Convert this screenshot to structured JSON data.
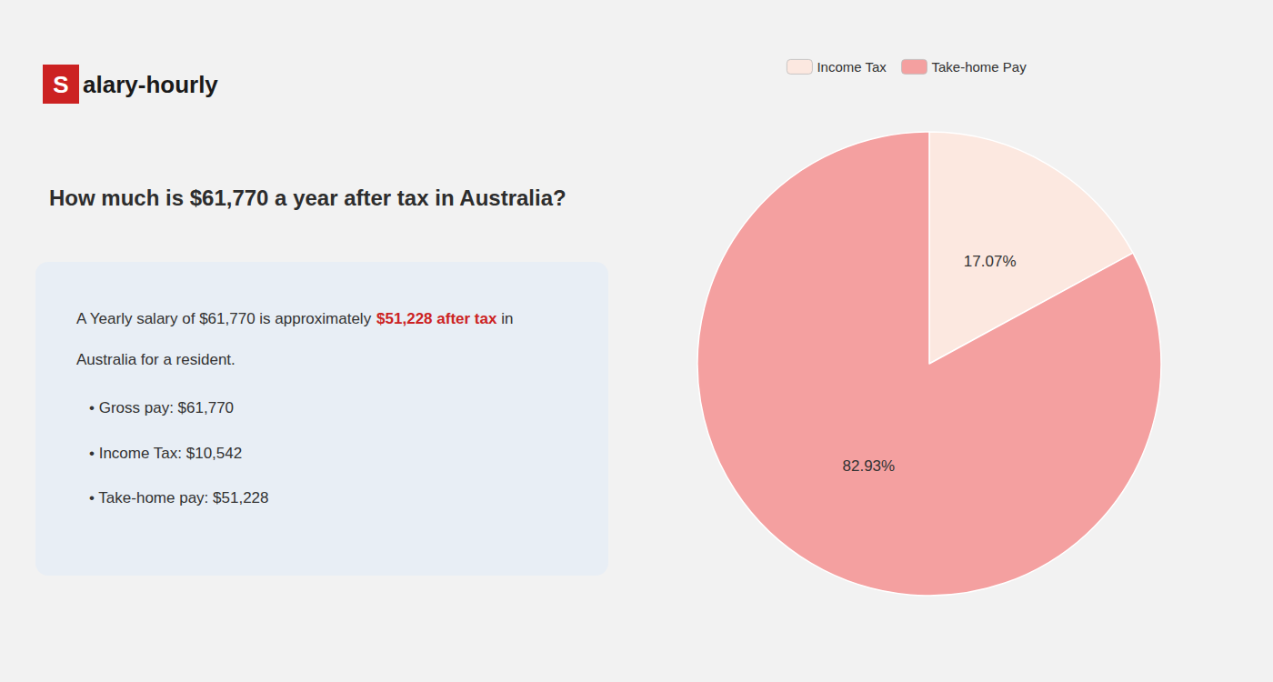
{
  "chart_data": {
    "type": "pie",
    "title": "How much is $61,770 a year after tax in Australia?",
    "annotations": [
      "S",
      "alary-hourly",
      "A Yearly salary of $61,770 is approximately ",
      "$51,228 after tax",
      " in",
      "Australia for a resident.",
      "• Gross pay: $61,770",
      "• Income Tax: $10,542",
      "• Take-home pay: $51,228"
    ],
    "categories": [
      "Income Tax",
      "Take-home Pay"
    ],
    "values": [
      17.07,
      82.93
    ],
    "value_labels": [
      "17.07%",
      "82.93%"
    ],
    "colors": [
      "#fce8e0",
      "#f4a0a0"
    ],
    "data_labels": true,
    "legend": "top"
  }
}
